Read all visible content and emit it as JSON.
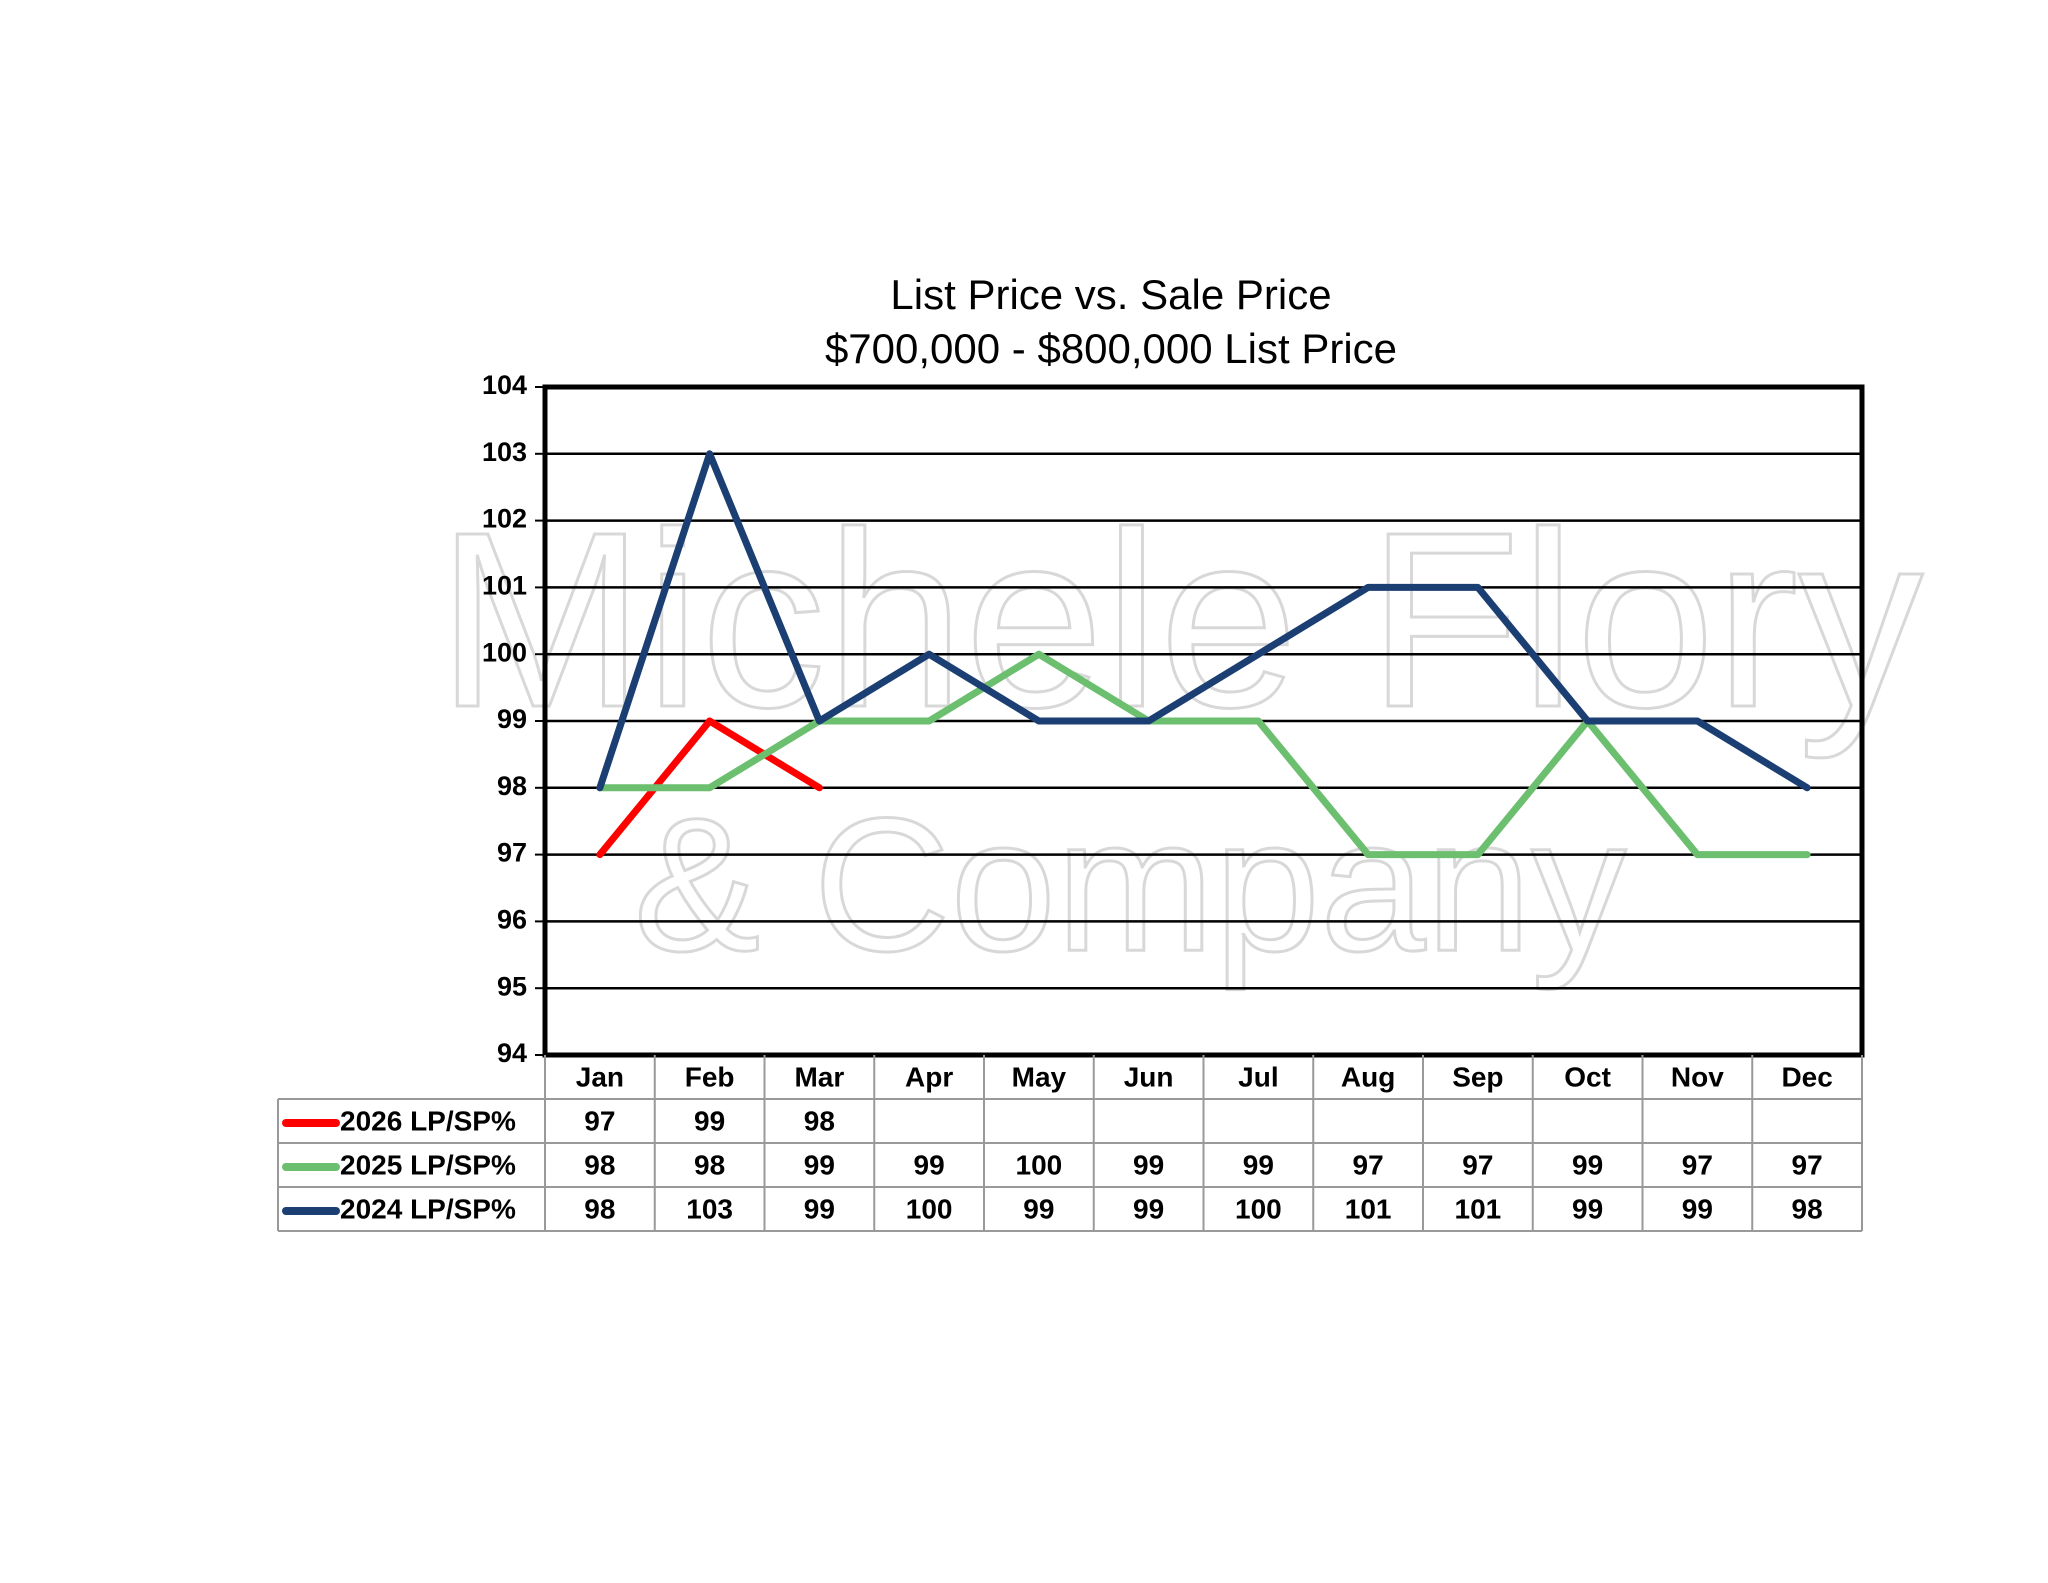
{
  "chart_data": {
    "type": "line",
    "title": "List Price vs. Sale Price",
    "subtitle": "$700,000 - $800,000 List Price",
    "watermark": [
      "Michele Flory",
      "& Company"
    ],
    "categories": [
      "Jan",
      "Feb",
      "Mar",
      "Apr",
      "May",
      "Jun",
      "Jul",
      "Aug",
      "Sep",
      "Oct",
      "Nov",
      "Dec"
    ],
    "series": [
      {
        "name": "2026 LP/SP%",
        "color": "#ff0000",
        "values": [
          97,
          99,
          98,
          null,
          null,
          null,
          null,
          null,
          null,
          null,
          null,
          null
        ]
      },
      {
        "name": "2025 LP/SP%",
        "color": "#6bbf6e",
        "values": [
          98,
          98,
          99,
          99,
          100,
          99,
          99,
          97,
          97,
          99,
          97,
          97
        ]
      },
      {
        "name": "2024 LP/SP%",
        "color": "#1b3f73",
        "values": [
          98,
          103,
          99,
          100,
          99,
          99,
          100,
          101,
          101,
          99,
          99,
          98
        ]
      }
    ],
    "ylim": [
      94,
      104
    ],
    "yticks": [
      94,
      95,
      96,
      97,
      98,
      99,
      100,
      101,
      102,
      103,
      104
    ],
    "grid": true,
    "data_table": true
  }
}
